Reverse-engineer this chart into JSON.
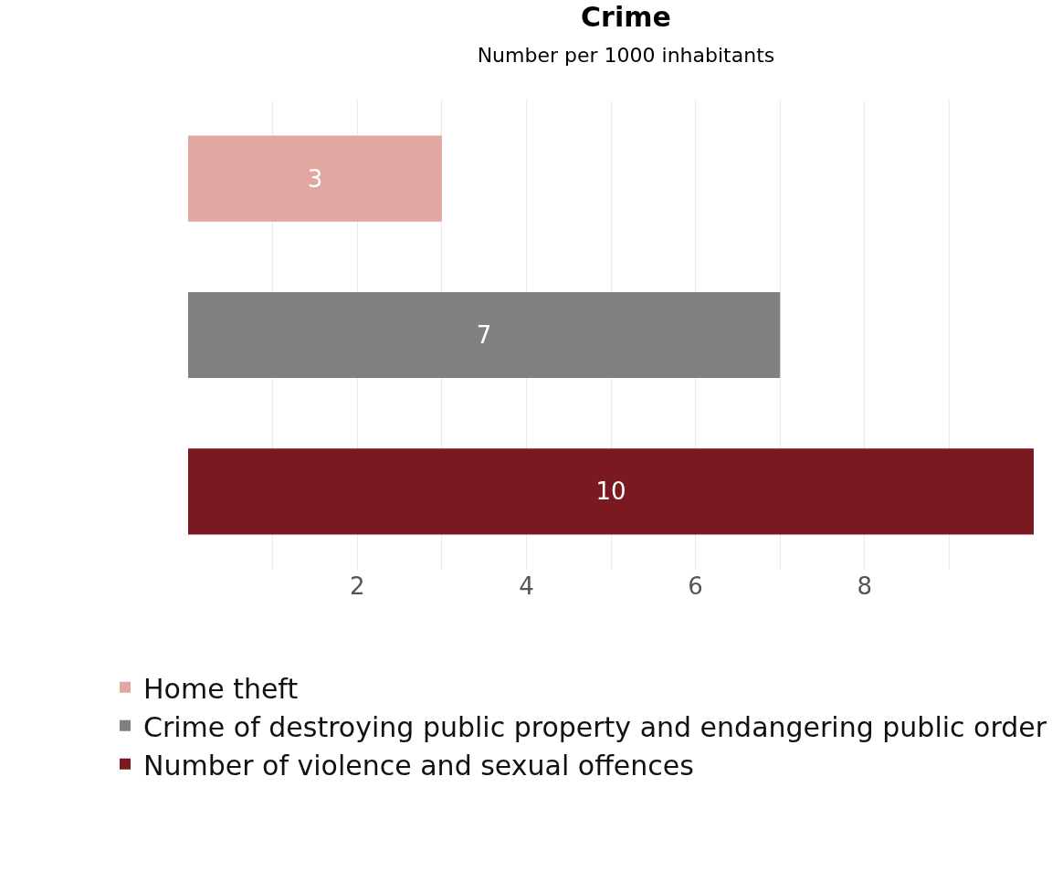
{
  "chart_data": {
    "type": "bar",
    "orientation": "horizontal",
    "title": "Crime",
    "subtitle": "Number per 1000 inhabitants",
    "categories": [
      null,
      null,
      null
    ],
    "series": [
      {
        "name": "Home theft",
        "color": "#e0a8a0",
        "values": [
          3,
          null,
          null
        ]
      },
      {
        "name": "Crime of destroying public property and endangering public order",
        "color": "#808080",
        "values": [
          null,
          7,
          null
        ]
      },
      {
        "name": "Number of violence and sexual offences",
        "color": "#7a1a20",
        "values": [
          null,
          null,
          10
        ]
      }
    ],
    "xlim": [
      0,
      10
    ],
    "xticks": [
      {
        "value": 1,
        "label": null
      },
      2,
      {
        "value": 3,
        "label": null
      },
      4,
      {
        "value": 5,
        "label": null
      },
      6,
      {
        "value": 7,
        "label": null
      },
      8,
      {
        "value": 9,
        "label": null
      }
    ],
    "grid": "x",
    "data_labels": true,
    "legend": "bottom left"
  }
}
